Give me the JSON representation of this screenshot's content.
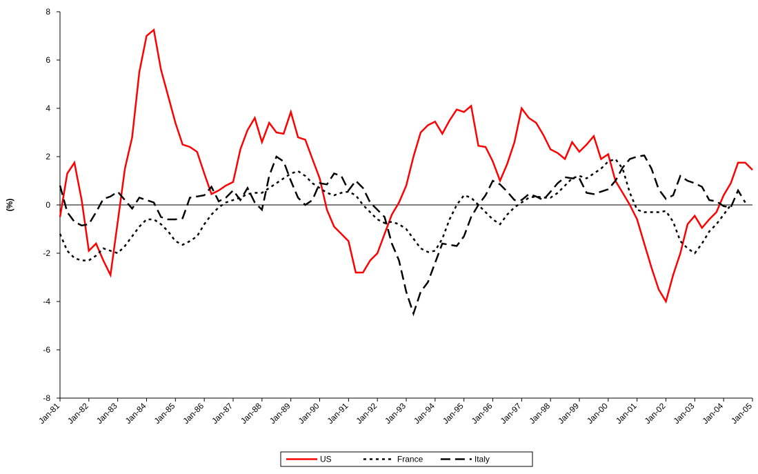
{
  "chart_data": {
    "type": "line",
    "y_label": "(%)",
    "categories": [
      "Jan-81",
      null,
      null,
      null,
      "Jan-82",
      null,
      null,
      null,
      "Jan-83",
      null,
      null,
      null,
      "Jan-84",
      null,
      null,
      null,
      "Jan-85",
      null,
      null,
      null,
      "Jan-86",
      null,
      null,
      null,
      "Jan-87",
      null,
      null,
      null,
      "Jan-88",
      null,
      null,
      null,
      "Jan-89",
      null,
      null,
      null,
      "Jan-90",
      null,
      null,
      null,
      "Jan-91",
      null,
      null,
      null,
      "Jan-92",
      null,
      null,
      null,
      "Jan-93",
      null,
      null,
      null,
      "Jan-94",
      null,
      null,
      null,
      "Jan-95",
      null,
      null,
      null,
      "Jan-96",
      null,
      null,
      null,
      "Jan-97",
      null,
      null,
      null,
      "Jan-98",
      null,
      null,
      null,
      "Jan-99",
      null,
      null,
      null,
      "Jan-00",
      null,
      null,
      null,
      "Jan-01",
      null,
      null,
      null,
      "Jan-02",
      null,
      null,
      null,
      "Jan-03",
      null,
      null,
      null,
      "Jan-04",
      null,
      null,
      null,
      "Jan-05"
    ],
    "series": [
      {
        "name": "US",
        "color": "#ff0000",
        "dash": "solid",
        "values": [
          -0.5,
          1.3,
          1.75,
          0.2,
          -1.9,
          -1.6,
          -2.3,
          -2.9,
          -0.7,
          1.5,
          2.8,
          5.5,
          7.0,
          7.25,
          5.6,
          4.5,
          3.4,
          2.5,
          2.4,
          2.2,
          1.3,
          0.45,
          0.6,
          0.8,
          0.95,
          2.3,
          3.1,
          3.6,
          2.6,
          3.4,
          3.0,
          2.95,
          3.85,
          2.8,
          2.7,
          1.9,
          1.1,
          -0.2,
          -0.9,
          -1.2,
          -1.5,
          -2.8,
          -2.8,
          -2.3,
          -2.0,
          -1.2,
          -0.4,
          0.1,
          0.8,
          2.0,
          3.0,
          3.3,
          3.45,
          2.95,
          3.5,
          3.95,
          3.85,
          4.1,
          2.45,
          2.4,
          1.8,
          1.0,
          1.7,
          2.6,
          4.0,
          3.6,
          3.4,
          2.9,
          2.3,
          2.15,
          1.9,
          2.6,
          2.2,
          2.5,
          2.85,
          1.9,
          2.1,
          1.0,
          0.5,
          0.0,
          -0.6,
          -1.6,
          -2.6,
          -3.5,
          -4.0,
          -2.9,
          -2.0,
          -0.8,
          -0.45,
          -0.95,
          -0.6,
          -0.3,
          0.4,
          0.9,
          1.75,
          1.75,
          1.45
        ]
      },
      {
        "name": "France",
        "color": "#000000",
        "dash": "dotted",
        "values": [
          -1.2,
          -1.9,
          -2.2,
          -2.3,
          -2.3,
          -2.1,
          -1.8,
          -1.9,
          -2.0,
          -1.7,
          -1.3,
          -0.9,
          -0.6,
          -0.6,
          -0.8,
          -1.1,
          -1.5,
          -1.65,
          -1.5,
          -1.3,
          -0.8,
          -0.4,
          -0.1,
          0.1,
          0.2,
          0.3,
          0.45,
          0.5,
          0.5,
          0.7,
          0.9,
          1.1,
          1.3,
          1.4,
          1.2,
          0.9,
          0.7,
          0.5,
          0.4,
          0.5,
          0.55,
          0.4,
          0.0,
          -0.3,
          -0.6,
          -0.75,
          -0.7,
          -0.8,
          -1.0,
          -1.4,
          -1.8,
          -1.95,
          -1.9,
          -1.4,
          -0.6,
          0.0,
          0.4,
          0.3,
          0.0,
          -0.3,
          -0.6,
          -0.8,
          -0.4,
          -0.1,
          0.1,
          0.3,
          0.35,
          0.3,
          0.3,
          0.5,
          0.8,
          1.1,
          1.2,
          1.1,
          1.3,
          1.5,
          1.8,
          1.9,
          1.5,
          0.5,
          -0.2,
          -0.3,
          -0.3,
          -0.3,
          -0.25,
          -0.7,
          -1.5,
          -1.8,
          -2.0,
          -1.6,
          -1.1,
          -0.8,
          -0.4,
          0.0,
          null,
          null,
          null
        ]
      },
      {
        "name": "Italy",
        "color": "#000000",
        "dash": "dashed",
        "values": [
          0.8,
          -0.3,
          -0.7,
          -0.85,
          -0.8,
          -0.3,
          0.25,
          0.35,
          0.55,
          0.2,
          -0.15,
          0.3,
          0.2,
          0.1,
          -0.5,
          -0.6,
          -0.6,
          -0.55,
          0.3,
          0.35,
          0.4,
          0.75,
          0.15,
          0.3,
          0.6,
          0.2,
          0.7,
          0.1,
          -0.2,
          1.2,
          2.0,
          1.8,
          1.0,
          0.3,
          0.0,
          0.2,
          0.9,
          0.85,
          1.3,
          1.2,
          0.6,
          1.0,
          0.7,
          0.1,
          -0.2,
          -0.5,
          -1.6,
          -2.3,
          -3.6,
          -4.5,
          -3.6,
          -3.2,
          -2.4,
          -1.6,
          -1.65,
          -1.7,
          -1.3,
          -0.5,
          0.0,
          0.4,
          1.0,
          0.85,
          0.55,
          0.2,
          0.2,
          0.45,
          0.35,
          0.2,
          0.55,
          0.9,
          1.15,
          1.1,
          1.1,
          0.5,
          0.45,
          0.55,
          0.65,
          1.0,
          1.55,
          1.9,
          2.0,
          2.05,
          1.5,
          0.65,
          0.25,
          0.4,
          1.2,
          1.0,
          0.9,
          0.75,
          0.2,
          0.15,
          -0.05,
          -0.1,
          0.6,
          0.1,
          null
        ]
      }
    ],
    "ylim": [
      -8,
      8
    ],
    "yticks": [
      -8,
      -6,
      -4,
      -2,
      0,
      2,
      4,
      6,
      8
    ],
    "grid": false,
    "legend": "bottom"
  }
}
